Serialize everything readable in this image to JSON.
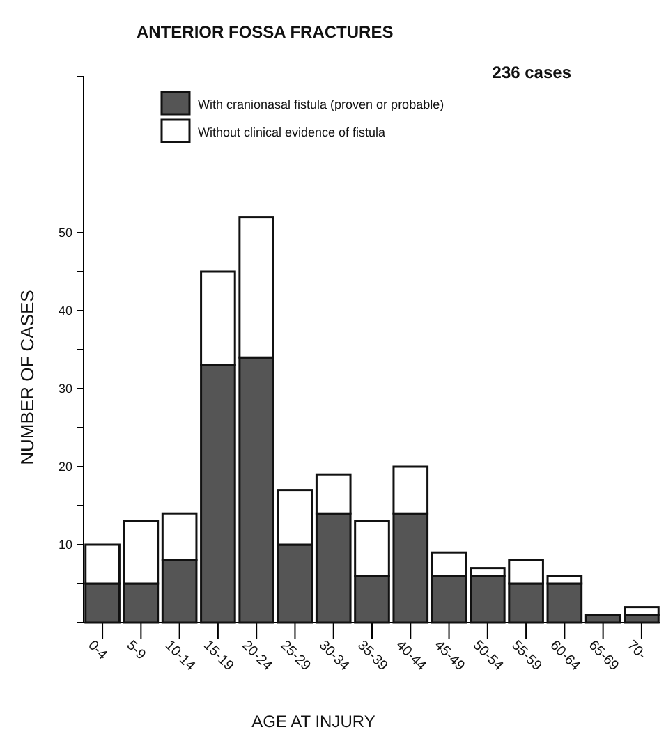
{
  "chart_data": {
    "type": "bar",
    "title": "ANTERIOR FOSSA FRACTURES",
    "xlabel": "AGE AT INJURY",
    "ylabel": "NUMBER OF CASES",
    "annotations": [
      "236 cases"
    ],
    "categories": [
      "0-4",
      "5-9",
      "10-14",
      "15-19",
      "20-24",
      "25-29",
      "30-34",
      "35-39",
      "40-44",
      "45-49",
      "50-54",
      "55-59",
      "60-64",
      "65-69",
      "70-"
    ],
    "stacked": true,
    "legend": "top left",
    "ylim": [
      0,
      70
    ],
    "yticks": [
      {
        "value": 5,
        "label": null
      },
      10,
      {
        "value": 15,
        "label": null
      },
      20,
      {
        "value": 25,
        "label": null
      },
      30,
      {
        "value": 35,
        "label": null
      },
      40,
      {
        "value": 45,
        "label": null
      },
      50
    ],
    "series": [
      {
        "name": "With cranionasal fistula (proven or probable)",
        "color": "#555555",
        "values": [
          5,
          5,
          8,
          33,
          34,
          10,
          14,
          6,
          14,
          6,
          6,
          5,
          5,
          1,
          1
        ]
      },
      {
        "name": "Without clinical evidence of fistula",
        "color": "#ffffff",
        "values": [
          5,
          8,
          6,
          12,
          18,
          7,
          5,
          7,
          6,
          3,
          1,
          3,
          1,
          0,
          1
        ]
      }
    ]
  }
}
